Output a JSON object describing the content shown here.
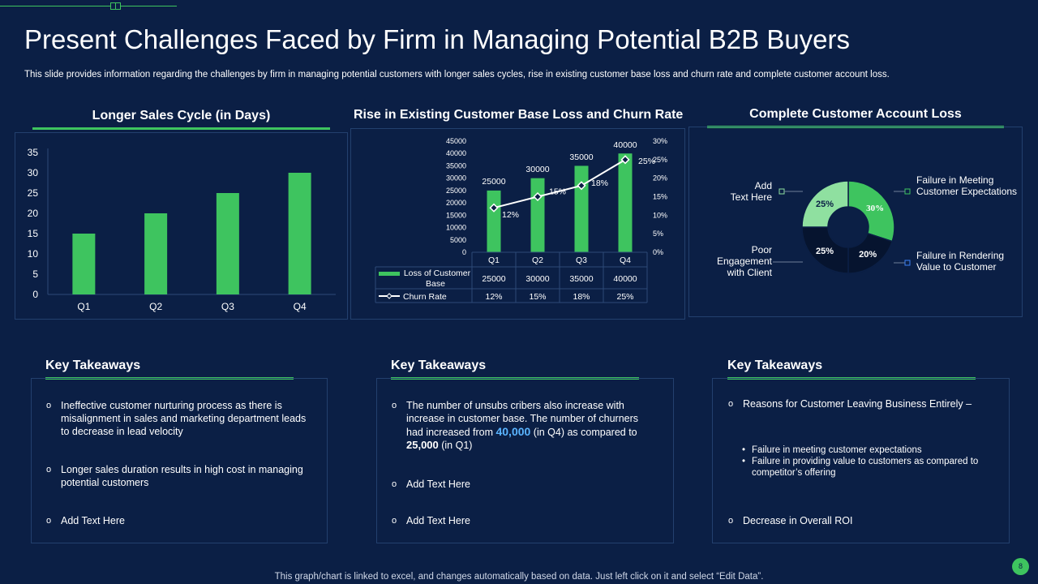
{
  "header": {
    "title": "Present Challenges Faced by Firm in Managing Potential B2B Buyers",
    "subtitle": "This slide provides information regarding the challenges by firm in managing potential customers with longer sales cycles, rise in existing customer base loss and churn rate and complete customer account loss."
  },
  "colors": {
    "background": "#0b1f45",
    "accent_green": "#3ec45f",
    "light_green": "#8fe0a0",
    "dark_navy": "#06142f",
    "highlight_blue": "#5ab4ff"
  },
  "chart_data": [
    {
      "type": "bar",
      "title": "Longer Sales Cycle (in Days)",
      "categories": [
        "Q1",
        "Q2",
        "Q3",
        "Q4"
      ],
      "values": [
        15,
        20,
        25,
        30
      ],
      "ylim": [
        0,
        35
      ],
      "yticks": [
        "0",
        "5",
        "10",
        "15",
        "20",
        "25",
        "30",
        "35"
      ],
      "xlabel": "",
      "ylabel": ""
    },
    {
      "type": "bar",
      "title": "Rise in Existing Customer Base Loss and Churn Rate",
      "categories": [
        "Q1",
        "Q2",
        "Q3",
        "Q4"
      ],
      "series": [
        {
          "name": "Loss of Customer Base",
          "values": [
            25000,
            30000,
            35000,
            40000
          ],
          "labels": [
            "25000",
            "30000",
            "35000",
            "40000"
          ],
          "axis": "left",
          "mark": "bar"
        },
        {
          "name": "Churn Rate",
          "values": [
            12,
            15,
            18,
            25
          ],
          "labels": [
            "12%",
            "15%",
            "18%",
            "25%"
          ],
          "axis": "right",
          "mark": "line"
        }
      ],
      "ylim_left": [
        0,
        45000
      ],
      "yticks_left": [
        "0",
        "5000",
        "10000",
        "15000",
        "20000",
        "25000",
        "30000",
        "35000",
        "40000",
        "45000"
      ],
      "ylim_right": [
        0,
        30
      ],
      "yticks_right": [
        "0%",
        "5%",
        "10%",
        "15%",
        "20%",
        "25%",
        "30%"
      ],
      "table": {
        "rows": [
          {
            "label": "Loss of Customer Base",
            "cells": [
              "25000",
              "30000",
              "35000",
              "40000"
            ]
          },
          {
            "label": "Churn Rate",
            "cells": [
              "12%",
              "15%",
              "18%",
              "25%"
            ]
          }
        ]
      }
    },
    {
      "type": "pie",
      "title": "Complete Customer Account Loss",
      "labels": [
        "Failure in Meeting Customer Expectations",
        "Failure in Rendering Value to Customer",
        "Poor Engagement with Client",
        "Add Text Here"
      ],
      "values": [
        30,
        20,
        25,
        25
      ],
      "value_labels": [
        "30%",
        "20%",
        "25%",
        "25%"
      ],
      "donut": true
    }
  ],
  "pie_labels": {
    "add_text": [
      "Add",
      "Text Here"
    ],
    "poor": [
      "Poor",
      "Engagement",
      "with Client"
    ],
    "meeting": [
      "Failure in Meeting",
      "Customer Expectations"
    ],
    "rendering": [
      "Failure in Rendering",
      "Value to Customer"
    ]
  },
  "takeaways": [
    {
      "title": "Key Takeaways",
      "items": [
        "Ineffective  customer nurturing process as there is misalignment in sales and marketing department leads to decrease in lead velocity",
        "Longer sales duration results in high cost in managing potential customers",
        "Add Text Here"
      ]
    },
    {
      "title": "Key Takeaways",
      "item1": {
        "text_a": "The number of unsubs cribers also increase with increase in customer base. The number of churners had increased from ",
        "highlight": "40,000",
        "text_b": " (in Q4) as compared to ",
        "bold": "25,000",
        "text_c": " (in Q1)"
      },
      "items": [
        "Add Text Here",
        "Add Text Here"
      ]
    },
    {
      "title": "Key Takeaways",
      "items": [
        "Reasons for Customer Leaving Business Entirely –",
        "Decrease in Overall ROI"
      ],
      "sub_items": [
        "Failure in meeting customer expectations",
        "Failure in providing value to customers as compared to competitor’s offering"
      ]
    }
  ],
  "footer": {
    "note": "This graph/chart is linked to excel, and changes automatically based on data. Just left click on it and select “Edit Data”.",
    "page": "8"
  }
}
